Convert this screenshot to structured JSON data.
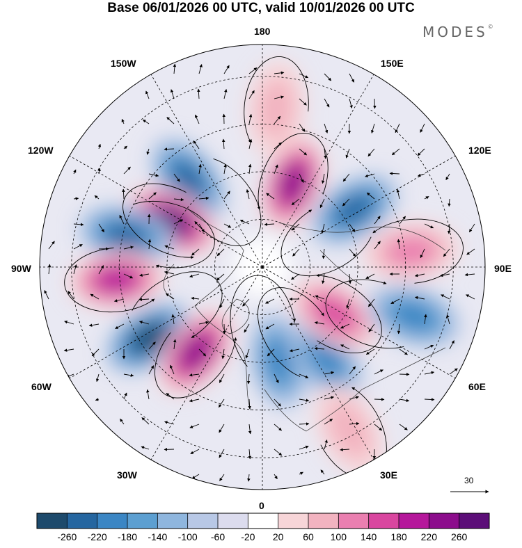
{
  "title": "Base 06/01/2026 00 UTC, valid 10/01/2026 00 UTC",
  "brand": "MODES",
  "brand_mark": "©",
  "longitude_labels": {
    "top": "180",
    "bottom": "0",
    "left": "90W",
    "right": "90E",
    "w150": "150W",
    "e150": "150E",
    "w120": "120W",
    "e120": "120E",
    "w60": "60W",
    "e60": "60E",
    "w30": "30W",
    "e30": "30E"
  },
  "wind_scale": {
    "value": "30"
  },
  "colorbar": {
    "labels": [
      "-260",
      "-220",
      "-180",
      "-140",
      "-100",
      "-60",
      "-20",
      "20",
      "60",
      "100",
      "140",
      "180",
      "220",
      "260"
    ],
    "colors": [
      "#1d4a6c",
      "#2566a0",
      "#3b86c4",
      "#5c9fd1",
      "#8fb6de",
      "#b8c8e6",
      "#dcdcee",
      "#ffffff",
      "#f7d5d8",
      "#f2b3c0",
      "#ea7fb0",
      "#d9469f",
      "#b5179b",
      "#8c0d8c",
      "#5c0e78"
    ]
  },
  "anomalies": [
    {
      "name": "low-120w-150w",
      "lon": -140,
      "colat": 36,
      "value": -200
    },
    {
      "name": "high-120w",
      "lon": -117,
      "colat": 32,
      "value": 260
    },
    {
      "name": "low-105w",
      "lon": -103,
      "colat": 44,
      "value": -180
    },
    {
      "name": "high-90w",
      "lon": -85,
      "colat": 46,
      "value": 180
    },
    {
      "name": "low-60w",
      "lon": -58,
      "colat": 42,
      "value": -220
    },
    {
      "name": "high-35w",
      "lon": -38,
      "colat": 34,
      "value": 240
    },
    {
      "name": "low-10e",
      "lon": 10,
      "colat": 30,
      "value": -140
    },
    {
      "name": "low-30e",
      "lon": 35,
      "colat": 35,
      "value": -160
    },
    {
      "name": "high-30e",
      "lon": 28,
      "colat": 58,
      "value": 80
    },
    {
      "name": "high-60e",
      "lon": 57,
      "colat": 27,
      "value": 140
    },
    {
      "name": "low-70e",
      "lon": 72,
      "colat": 50,
      "value": -140
    },
    {
      "name": "high-90e",
      "lon": 96,
      "colat": 47,
      "value": 120
    },
    {
      "name": "low-120e",
      "lon": 122,
      "colat": 34,
      "value": -200
    },
    {
      "name": "high-150e",
      "lon": 160,
      "colat": 28,
      "value": 240
    },
    {
      "name": "high-180",
      "lon": 175,
      "colat": 50,
      "value": 60
    }
  ]
}
